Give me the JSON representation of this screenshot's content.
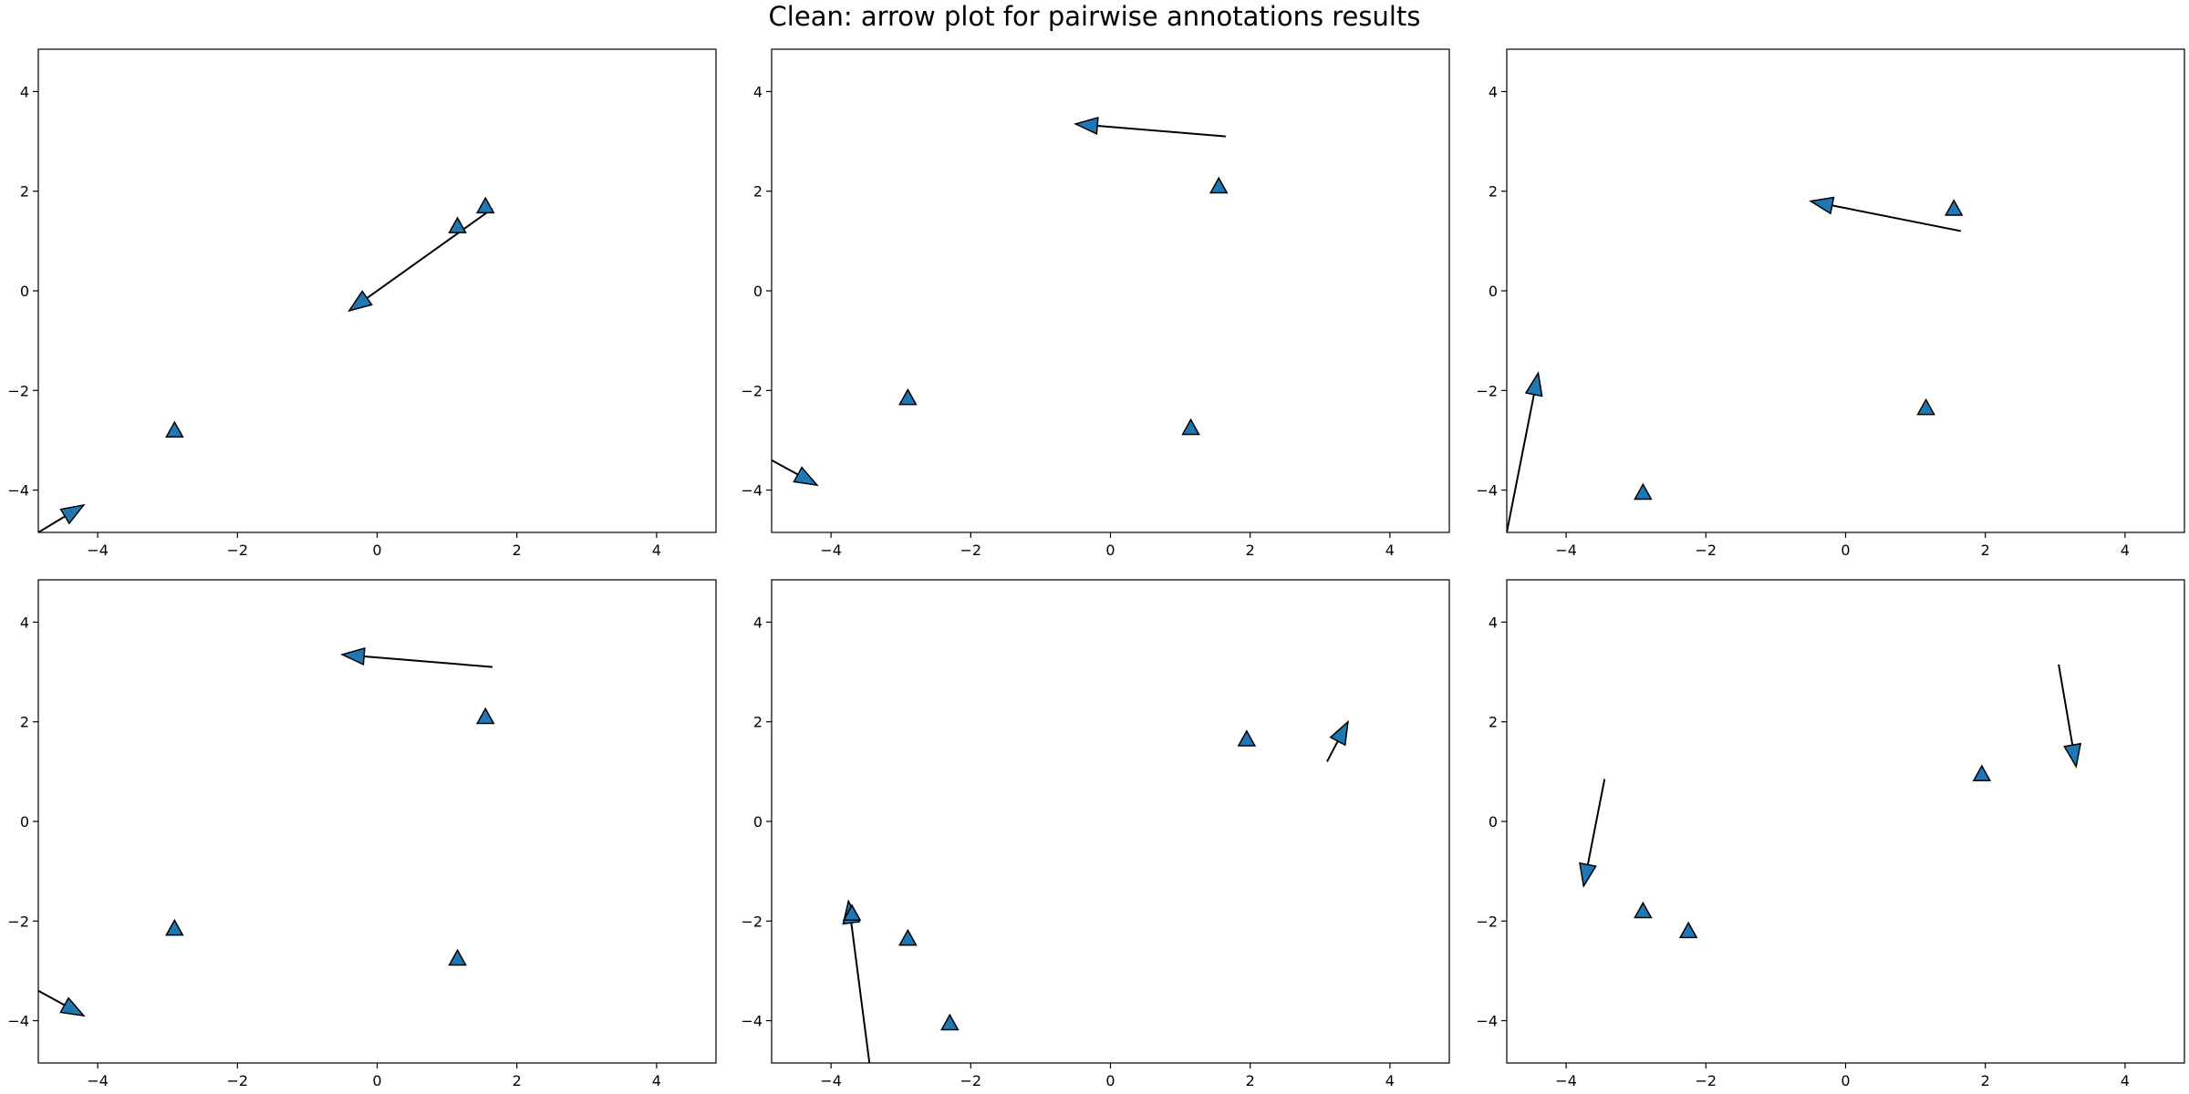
{
  "title": "Clean: arrow plot for pairwise annotations results",
  "chart_data": [
    {
      "type": "scatter",
      "xlim": [
        -4.85,
        4.85
      ],
      "ylim": [
        -4.85,
        4.85
      ],
      "xticks": [
        -4,
        -2,
        0,
        2,
        4
      ],
      "yticks": [
        -4,
        -2,
        0,
        2,
        4
      ],
      "grid": false,
      "marker_color": "#1f77b4",
      "points": [
        {
          "x": 1.15,
          "y": 1.3
        },
        {
          "x": 1.55,
          "y": 1.7
        },
        {
          "x": -2.9,
          "y": -2.8
        }
      ],
      "arrows": [
        {
          "from": [
            1.65,
            1.65
          ],
          "to": [
            -0.4,
            -0.4
          ]
        },
        {
          "from": [
            -4.85,
            -4.85
          ],
          "to": [
            -4.2,
            -4.3
          ]
        }
      ]
    },
    {
      "type": "scatter",
      "xlim": [
        -4.85,
        4.85
      ],
      "ylim": [
        -4.85,
        4.85
      ],
      "xticks": [
        -4,
        -2,
        0,
        2,
        4
      ],
      "yticks": [
        -4,
        -2,
        0,
        2,
        4
      ],
      "grid": false,
      "marker_color": "#1f77b4",
      "points": [
        {
          "x": 1.55,
          "y": 2.1
        },
        {
          "x": -2.9,
          "y": -2.15
        },
        {
          "x": 1.15,
          "y": -2.75
        }
      ],
      "arrows": [
        {
          "from": [
            1.65,
            3.1
          ],
          "to": [
            -0.5,
            3.35
          ]
        },
        {
          "from": [
            -4.85,
            -3.4
          ],
          "to": [
            -4.2,
            -3.9
          ]
        }
      ]
    },
    {
      "type": "scatter",
      "xlim": [
        -4.85,
        4.85
      ],
      "ylim": [
        -4.85,
        4.85
      ],
      "xticks": [
        -4,
        -2,
        0,
        2,
        4
      ],
      "yticks": [
        -4,
        -2,
        0,
        2,
        4
      ],
      "grid": false,
      "marker_color": "#1f77b4",
      "points": [
        {
          "x": 1.55,
          "y": 1.65
        },
        {
          "x": 1.15,
          "y": -2.35
        },
        {
          "x": -2.9,
          "y": -4.05
        }
      ],
      "arrows": [
        {
          "from": [
            1.65,
            1.2
          ],
          "to": [
            -0.5,
            1.8
          ]
        },
        {
          "from": [
            -4.85,
            -4.85
          ],
          "to": [
            -4.4,
            -1.65
          ]
        }
      ]
    },
    {
      "type": "scatter",
      "xlim": [
        -4.85,
        4.85
      ],
      "ylim": [
        -4.85,
        4.85
      ],
      "xticks": [
        -4,
        -2,
        0,
        2,
        4
      ],
      "yticks": [
        -4,
        -2,
        0,
        2,
        4
      ],
      "grid": false,
      "marker_color": "#1f77b4",
      "points": [
        {
          "x": 1.55,
          "y": 2.1
        },
        {
          "x": -2.9,
          "y": -2.15
        },
        {
          "x": 1.15,
          "y": -2.75
        }
      ],
      "arrows": [
        {
          "from": [
            1.65,
            3.1
          ],
          "to": [
            -0.5,
            3.35
          ]
        },
        {
          "from": [
            -4.85,
            -3.4
          ],
          "to": [
            -4.2,
            -3.9
          ]
        }
      ]
    },
    {
      "type": "scatter",
      "xlim": [
        -4.85,
        4.85
      ],
      "ylim": [
        -4.85,
        4.85
      ],
      "xticks": [
        -4,
        -2,
        0,
        2,
        4
      ],
      "yticks": [
        -4,
        -2,
        0,
        2,
        4
      ],
      "grid": false,
      "marker_color": "#1f77b4",
      "points": [
        {
          "x": 1.95,
          "y": 1.65
        },
        {
          "x": -3.7,
          "y": -1.85
        },
        {
          "x": -2.9,
          "y": -2.35
        },
        {
          "x": -2.3,
          "y": -4.05
        }
      ],
      "arrows": [
        {
          "from": [
            3.1,
            1.2
          ],
          "to": [
            3.4,
            2.0
          ]
        },
        {
          "from": [
            -3.45,
            -4.85
          ],
          "to": [
            -3.75,
            -1.6
          ]
        }
      ]
    },
    {
      "type": "scatter",
      "xlim": [
        -4.85,
        4.85
      ],
      "ylim": [
        -4.85,
        4.85
      ],
      "xticks": [
        -4,
        -2,
        0,
        2,
        4
      ],
      "yticks": [
        -4,
        -2,
        0,
        2,
        4
      ],
      "grid": false,
      "marker_color": "#1f77b4",
      "points": [
        {
          "x": 1.95,
          "y": 0.95
        },
        {
          "x": -2.9,
          "y": -1.8
        },
        {
          "x": -2.25,
          "y": -2.2
        }
      ],
      "arrows": [
        {
          "from": [
            3.05,
            3.15
          ],
          "to": [
            3.3,
            1.1
          ]
        },
        {
          "from": [
            -3.45,
            0.85
          ],
          "to": [
            -3.75,
            -1.3
          ]
        }
      ]
    }
  ]
}
